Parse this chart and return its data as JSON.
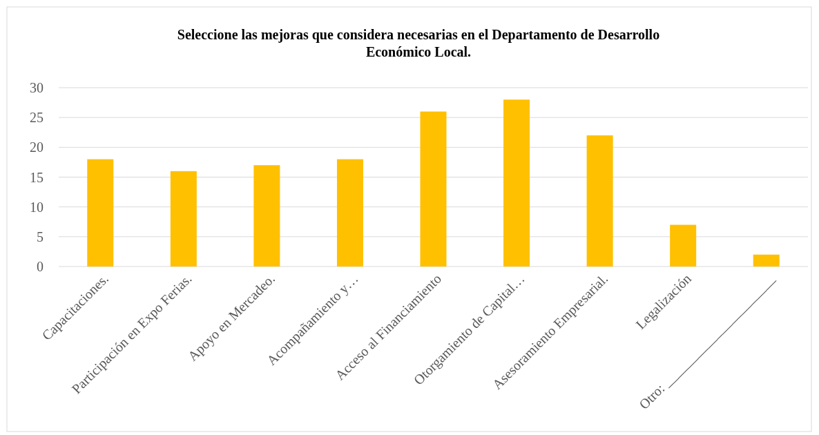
{
  "chart_data": {
    "type": "bar",
    "title": "Seleccione las mejoras que considera necesarias en el Departamento de Desarrollo Económico Local.",
    "categories": [
      "Capacitaciones.",
      "Participación en Expo Ferias.",
      "Apoyo en Mercadeo.",
      "Acompañamiento y…",
      "Acceso al Financiamiento",
      "Otorgamiento de Capital…",
      "Asesoramiento Empresarial.",
      "Legalización",
      "Otro: ______________________"
    ],
    "values": [
      18,
      16,
      17,
      18,
      26,
      28,
      22,
      7,
      2
    ],
    "color": "#ffc000",
    "ylim": [
      0,
      30
    ],
    "yticks": [
      0,
      5,
      10,
      15,
      20,
      25,
      30
    ],
    "grid": "y"
  }
}
